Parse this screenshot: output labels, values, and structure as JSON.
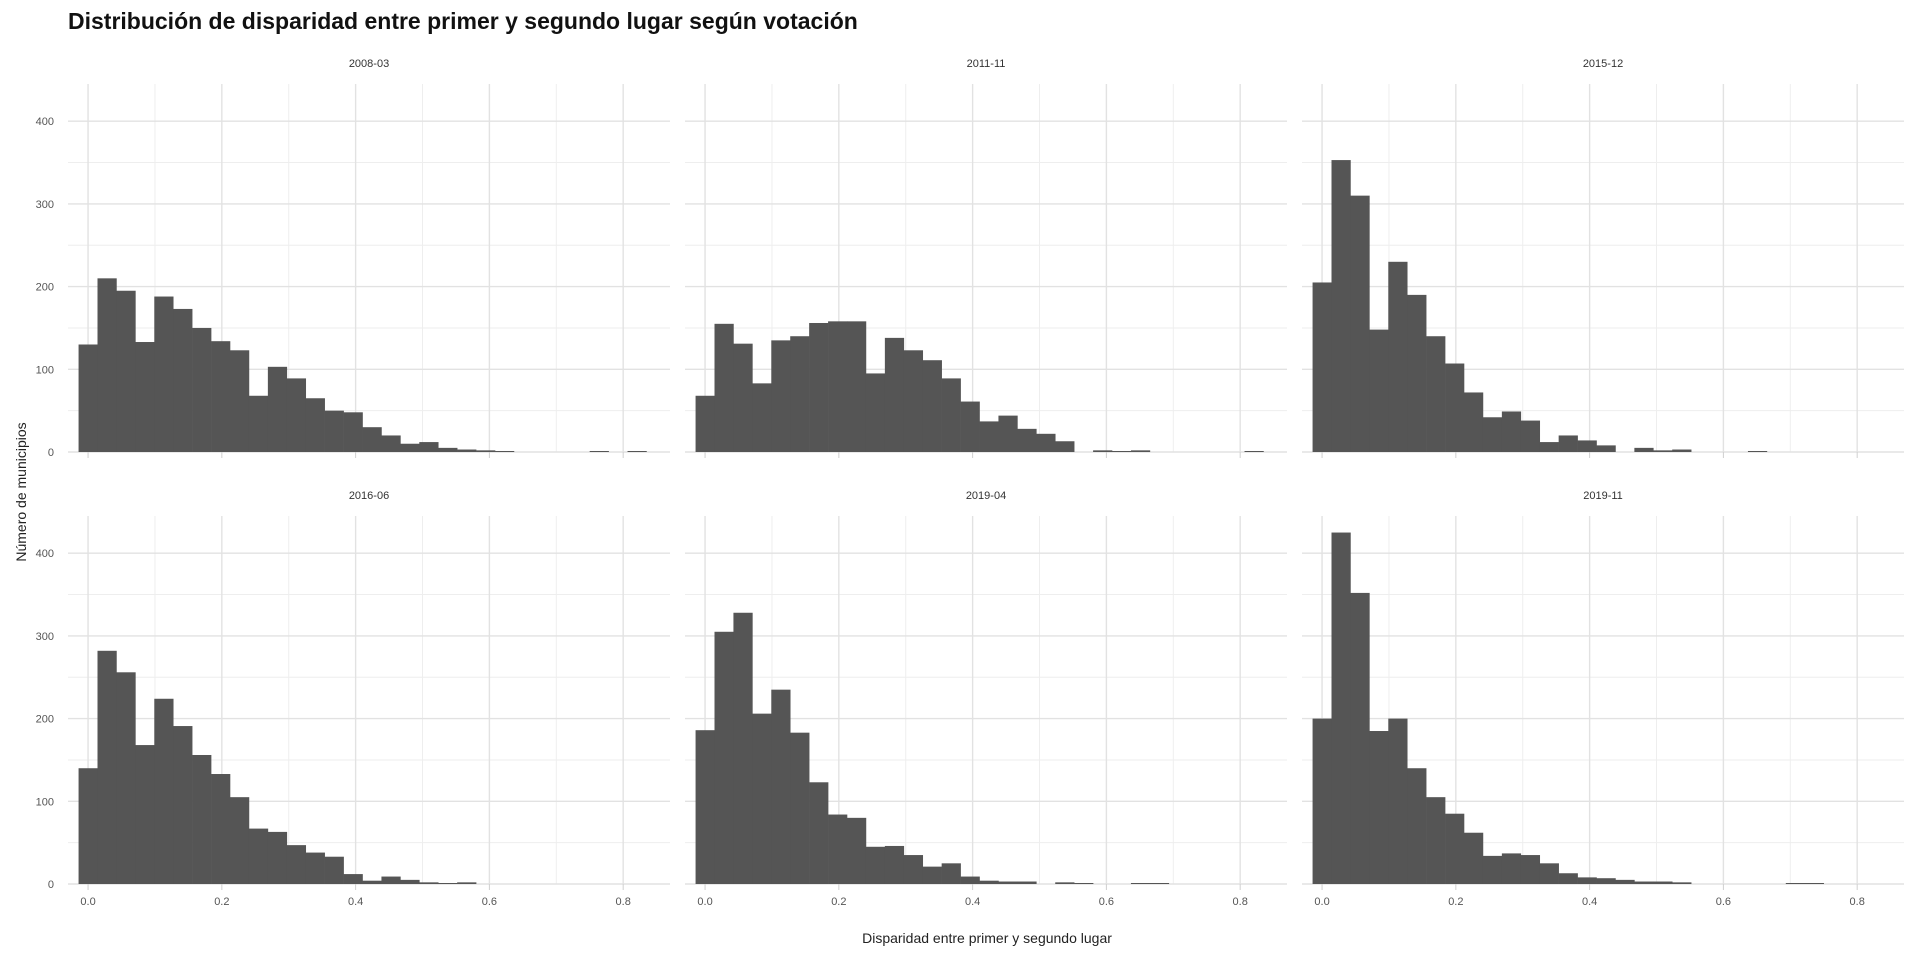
{
  "title": "Distribución de disparidad entre primer y segundo lugar según votación",
  "chart_data": {
    "type": "bar",
    "subtype": "histogram-facets",
    "title": "Distribución de disparidad entre primer y segundo lugar según votación",
    "xlabel": "Disparidad entre primer y segundo lugar",
    "ylabel": "Número de municipios",
    "xlim": [
      -0.03,
      0.87
    ],
    "ylim": [
      0,
      445
    ],
    "x_ticks": [
      0.0,
      0.2,
      0.4,
      0.6,
      0.8
    ],
    "x_tick_labels": [
      "0.0",
      "0.2",
      "0.4",
      "0.6",
      "0.8"
    ],
    "y_ticks": [
      0,
      100,
      200,
      300,
      400
    ],
    "y_tick_labels": [
      "0",
      "100",
      "200",
      "300",
      "400"
    ],
    "bin_width": 0.0283,
    "first_bin_start": -0.0142,
    "grid": true,
    "legend": "none",
    "facets": [
      {
        "name": "2008-03",
        "counts": [
          130,
          210,
          195,
          133,
          188,
          173,
          150,
          134,
          123,
          68,
          103,
          89,
          65,
          50,
          48,
          30,
          20,
          10,
          12,
          5,
          3,
          2,
          1,
          0,
          0,
          0,
          0,
          1,
          0,
          1
        ]
      },
      {
        "name": "2011-11",
        "counts": [
          68,
          155,
          131,
          83,
          135,
          140,
          156,
          158,
          158,
          95,
          138,
          123,
          111,
          89,
          61,
          37,
          44,
          28,
          22,
          13,
          0,
          2,
          1,
          2,
          0,
          0,
          0,
          0,
          0,
          1
        ]
      },
      {
        "name": "2015-12",
        "counts": [
          205,
          353,
          310,
          148,
          230,
          190,
          140,
          107,
          72,
          42,
          49,
          38,
          12,
          20,
          14,
          8,
          0,
          5,
          2,
          3,
          0,
          0,
          0,
          1,
          0,
          0,
          0,
          0,
          0,
          0
        ]
      },
      {
        "name": "2016-06",
        "counts": [
          140,
          282,
          256,
          168,
          224,
          191,
          156,
          133,
          105,
          67,
          63,
          47,
          38,
          33,
          12,
          4,
          9,
          5,
          2,
          1,
          2,
          0,
          0,
          0,
          0,
          0,
          0,
          0,
          0,
          0
        ]
      },
      {
        "name": "2019-04",
        "counts": [
          186,
          305,
          328,
          206,
          235,
          183,
          123,
          84,
          80,
          45,
          46,
          35,
          21,
          25,
          9,
          4,
          3,
          3,
          0,
          2,
          1,
          0,
          0,
          1,
          1,
          0,
          0,
          0,
          0,
          0
        ]
      },
      {
        "name": "2019-11",
        "counts": [
          200,
          425,
          352,
          185,
          200,
          140,
          105,
          85,
          62,
          34,
          37,
          35,
          25,
          13,
          8,
          7,
          5,
          3,
          3,
          2,
          0,
          0,
          0,
          0,
          0,
          1,
          1,
          0,
          0,
          0
        ]
      }
    ]
  }
}
